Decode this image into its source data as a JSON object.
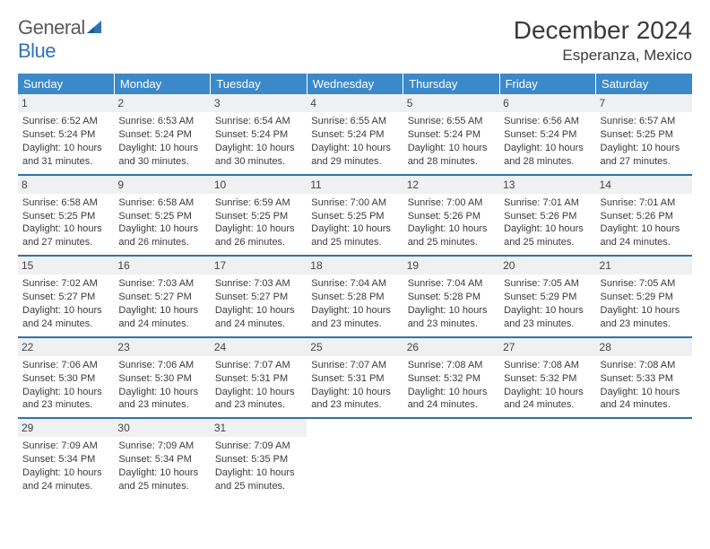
{
  "logo": {
    "word1": "General",
    "word2": "Blue"
  },
  "title": "December 2024",
  "location": "Esperanza, Mexico",
  "colors": {
    "header_bg": "#3b89c9",
    "header_text": "#ffffff",
    "week_border": "#3371a8",
    "daynum_bg": "#eef0f2",
    "text": "#3a3a3a",
    "logo_gray": "#5a5a5a",
    "logo_blue": "#2d72b5"
  },
  "day_headers": [
    "Sunday",
    "Monday",
    "Tuesday",
    "Wednesday",
    "Thursday",
    "Friday",
    "Saturday"
  ],
  "weeks": [
    [
      {
        "n": "1",
        "sr": "6:52 AM",
        "ss": "5:24 PM",
        "dl": "10 hours and 31 minutes."
      },
      {
        "n": "2",
        "sr": "6:53 AM",
        "ss": "5:24 PM",
        "dl": "10 hours and 30 minutes."
      },
      {
        "n": "3",
        "sr": "6:54 AM",
        "ss": "5:24 PM",
        "dl": "10 hours and 30 minutes."
      },
      {
        "n": "4",
        "sr": "6:55 AM",
        "ss": "5:24 PM",
        "dl": "10 hours and 29 minutes."
      },
      {
        "n": "5",
        "sr": "6:55 AM",
        "ss": "5:24 PM",
        "dl": "10 hours and 28 minutes."
      },
      {
        "n": "6",
        "sr": "6:56 AM",
        "ss": "5:24 PM",
        "dl": "10 hours and 28 minutes."
      },
      {
        "n": "7",
        "sr": "6:57 AM",
        "ss": "5:25 PM",
        "dl": "10 hours and 27 minutes."
      }
    ],
    [
      {
        "n": "8",
        "sr": "6:58 AM",
        "ss": "5:25 PM",
        "dl": "10 hours and 27 minutes."
      },
      {
        "n": "9",
        "sr": "6:58 AM",
        "ss": "5:25 PM",
        "dl": "10 hours and 26 minutes."
      },
      {
        "n": "10",
        "sr": "6:59 AM",
        "ss": "5:25 PM",
        "dl": "10 hours and 26 minutes."
      },
      {
        "n": "11",
        "sr": "7:00 AM",
        "ss": "5:25 PM",
        "dl": "10 hours and 25 minutes."
      },
      {
        "n": "12",
        "sr": "7:00 AM",
        "ss": "5:26 PM",
        "dl": "10 hours and 25 minutes."
      },
      {
        "n": "13",
        "sr": "7:01 AM",
        "ss": "5:26 PM",
        "dl": "10 hours and 25 minutes."
      },
      {
        "n": "14",
        "sr": "7:01 AM",
        "ss": "5:26 PM",
        "dl": "10 hours and 24 minutes."
      }
    ],
    [
      {
        "n": "15",
        "sr": "7:02 AM",
        "ss": "5:27 PM",
        "dl": "10 hours and 24 minutes."
      },
      {
        "n": "16",
        "sr": "7:03 AM",
        "ss": "5:27 PM",
        "dl": "10 hours and 24 minutes."
      },
      {
        "n": "17",
        "sr": "7:03 AM",
        "ss": "5:27 PM",
        "dl": "10 hours and 24 minutes."
      },
      {
        "n": "18",
        "sr": "7:04 AM",
        "ss": "5:28 PM",
        "dl": "10 hours and 23 minutes."
      },
      {
        "n": "19",
        "sr": "7:04 AM",
        "ss": "5:28 PM",
        "dl": "10 hours and 23 minutes."
      },
      {
        "n": "20",
        "sr": "7:05 AM",
        "ss": "5:29 PM",
        "dl": "10 hours and 23 minutes."
      },
      {
        "n": "21",
        "sr": "7:05 AM",
        "ss": "5:29 PM",
        "dl": "10 hours and 23 minutes."
      }
    ],
    [
      {
        "n": "22",
        "sr": "7:06 AM",
        "ss": "5:30 PM",
        "dl": "10 hours and 23 minutes."
      },
      {
        "n": "23",
        "sr": "7:06 AM",
        "ss": "5:30 PM",
        "dl": "10 hours and 23 minutes."
      },
      {
        "n": "24",
        "sr": "7:07 AM",
        "ss": "5:31 PM",
        "dl": "10 hours and 23 minutes."
      },
      {
        "n": "25",
        "sr": "7:07 AM",
        "ss": "5:31 PM",
        "dl": "10 hours and 23 minutes."
      },
      {
        "n": "26",
        "sr": "7:08 AM",
        "ss": "5:32 PM",
        "dl": "10 hours and 24 minutes."
      },
      {
        "n": "27",
        "sr": "7:08 AM",
        "ss": "5:32 PM",
        "dl": "10 hours and 24 minutes."
      },
      {
        "n": "28",
        "sr": "7:08 AM",
        "ss": "5:33 PM",
        "dl": "10 hours and 24 minutes."
      }
    ],
    [
      {
        "n": "29",
        "sr": "7:09 AM",
        "ss": "5:34 PM",
        "dl": "10 hours and 24 minutes."
      },
      {
        "n": "30",
        "sr": "7:09 AM",
        "ss": "5:34 PM",
        "dl": "10 hours and 25 minutes."
      },
      {
        "n": "31",
        "sr": "7:09 AM",
        "ss": "5:35 PM",
        "dl": "10 hours and 25 minutes."
      },
      null,
      null,
      null,
      null
    ]
  ],
  "labels": {
    "sunrise": "Sunrise: ",
    "sunset": "Sunset: ",
    "daylight": "Daylight: "
  }
}
